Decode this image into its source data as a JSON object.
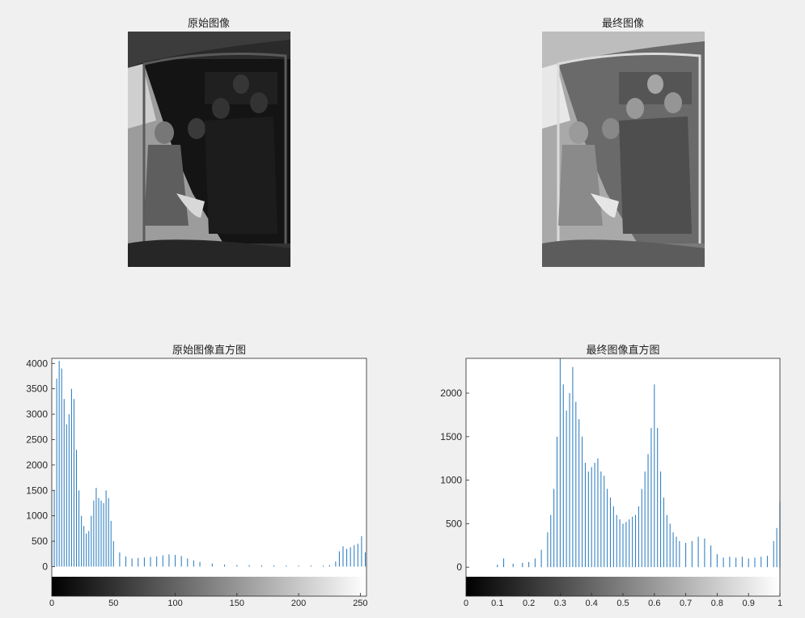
{
  "panels": {
    "original_image_title": "原始图像",
    "final_image_title": "最终图像"
  },
  "colors": {
    "bar": "#2f7fc1",
    "background": "#f0f0f0",
    "axes": "#262626"
  },
  "chart_data": [
    {
      "type": "bar",
      "title": "原始图像直方图",
      "xlabel": "",
      "ylabel": "",
      "xlim": [
        0,
        255
      ],
      "ylim": [
        -200,
        4100
      ],
      "xticks": [
        0,
        50,
        100,
        150,
        200,
        250
      ],
      "yticks": [
        0,
        500,
        1000,
        1500,
        2000,
        2500,
        3000,
        3500,
        4000
      ],
      "colorbar": "gray",
      "grid": false,
      "x": [
        0,
        2,
        4,
        6,
        8,
        10,
        12,
        14,
        16,
        18,
        20,
        22,
        24,
        26,
        28,
        30,
        32,
        34,
        36,
        38,
        40,
        42,
        44,
        46,
        48,
        50,
        55,
        60,
        65,
        70,
        75,
        80,
        85,
        90,
        95,
        100,
        105,
        110,
        115,
        120,
        130,
        140,
        150,
        160,
        170,
        180,
        190,
        200,
        210,
        220,
        225,
        230,
        233,
        236,
        239,
        242,
        245,
        248,
        251,
        254
      ],
      "values": [
        500,
        1500,
        3700,
        4050,
        3900,
        3300,
        2800,
        3000,
        3500,
        3300,
        2300,
        1500,
        1000,
        800,
        650,
        700,
        1000,
        1300,
        1550,
        1350,
        1300,
        1250,
        1500,
        1350,
        900,
        500,
        280,
        200,
        160,
        170,
        180,
        190,
        200,
        220,
        240,
        230,
        210,
        160,
        120,
        90,
        60,
        40,
        30,
        30,
        25,
        25,
        20,
        20,
        20,
        20,
        30,
        100,
        300,
        400,
        350,
        380,
        420,
        450,
        600,
        280
      ]
    },
    {
      "type": "bar",
      "title": "最终图像直方图",
      "xlabel": "",
      "ylabel": "",
      "xlim": [
        0,
        1
      ],
      "ylim": [
        -110,
        2400
      ],
      "xticks": [
        0,
        0.1,
        0.2,
        0.3,
        0.4,
        0.5,
        0.6,
        0.7,
        0.8,
        0.9,
        1
      ],
      "xtick_labels": [
        "0",
        "0.1",
        "0.2",
        "0.3",
        "0.4",
        "0.5",
        "0.6",
        "0.7",
        "0.8",
        "0.9",
        "1"
      ],
      "yticks": [
        0,
        500,
        1000,
        1500,
        2000
      ],
      "colorbar": "gray",
      "grid": false,
      "x": [
        0.0,
        0.05,
        0.1,
        0.12,
        0.15,
        0.18,
        0.2,
        0.22,
        0.24,
        0.26,
        0.27,
        0.28,
        0.29,
        0.3,
        0.31,
        0.32,
        0.33,
        0.34,
        0.35,
        0.36,
        0.37,
        0.38,
        0.39,
        0.4,
        0.41,
        0.42,
        0.43,
        0.44,
        0.45,
        0.46,
        0.47,
        0.48,
        0.49,
        0.5,
        0.51,
        0.52,
        0.53,
        0.54,
        0.55,
        0.56,
        0.57,
        0.58,
        0.59,
        0.6,
        0.61,
        0.62,
        0.63,
        0.64,
        0.65,
        0.66,
        0.67,
        0.68,
        0.7,
        0.72,
        0.74,
        0.76,
        0.78,
        0.8,
        0.82,
        0.84,
        0.86,
        0.88,
        0.9,
        0.92,
        0.94,
        0.96,
        0.98,
        0.99,
        1.0
      ],
      "values": [
        0,
        0,
        30,
        100,
        40,
        50,
        60,
        100,
        200,
        400,
        600,
        900,
        1500,
        2400,
        2100,
        1800,
        2000,
        2300,
        1900,
        1700,
        1500,
        1200,
        1100,
        1150,
        1200,
        1250,
        1100,
        1050,
        900,
        800,
        700,
        600,
        550,
        500,
        520,
        550,
        580,
        600,
        700,
        900,
        1100,
        1300,
        1600,
        2100,
        1600,
        1100,
        800,
        600,
        500,
        400,
        350,
        300,
        280,
        300,
        350,
        330,
        250,
        150,
        110,
        120,
        110,
        120,
        100,
        110,
        120,
        130,
        300,
        450,
        750
      ]
    }
  ]
}
